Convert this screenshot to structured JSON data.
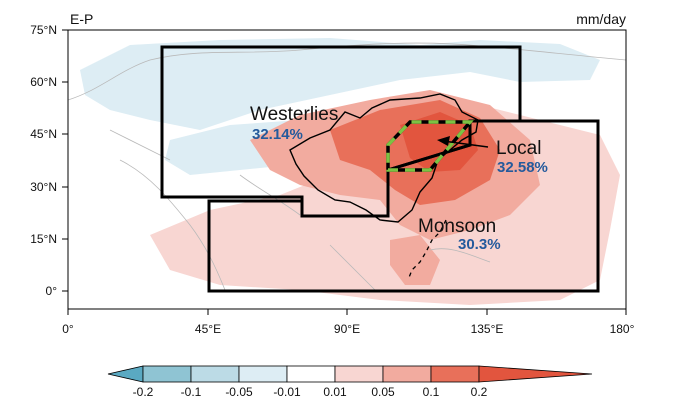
{
  "panel": {
    "variable_label": "E-P",
    "unit_label": "mm/day"
  },
  "axes": {
    "x_ticks": [
      "0°",
      "45°E",
      "90°E",
      "135°E",
      "180°"
    ],
    "y_ticks": [
      "75°N",
      "60°N",
      "45°N",
      "30°N",
      "15°N",
      "0°"
    ]
  },
  "regions": [
    {
      "id": "westerlies",
      "name": "Westerlies",
      "share": "32.14%"
    },
    {
      "id": "local",
      "name": "Local",
      "share": "32.58%"
    },
    {
      "id": "monsoon",
      "name": "Monsoon",
      "share": "30.3%"
    }
  ],
  "colorbar": {
    "labels": [
      "-0.2",
      "-0.1",
      "-0.05",
      "-0.01",
      "0.01",
      "0.05",
      "0.1",
      "0.2"
    ],
    "colors": [
      "#5aa9c2",
      "#8fc4d3",
      "#bcdbe6",
      "#ddedf4",
      "#ffffff",
      "#f8d6d2",
      "#f2ab9f",
      "#e8705a",
      "#e2553e"
    ]
  }
}
